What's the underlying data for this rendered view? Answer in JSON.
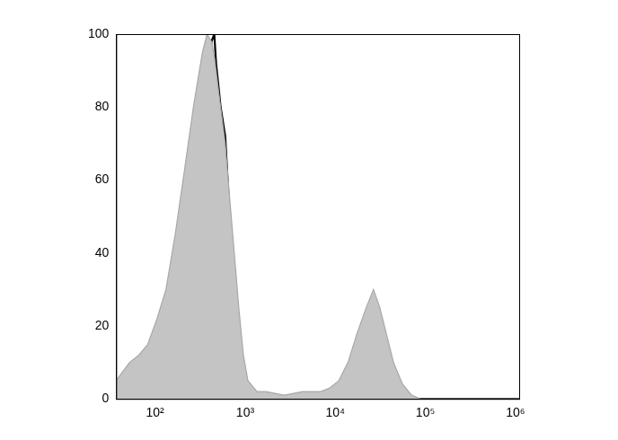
{
  "chart_data": {
    "type": "line",
    "log": "x",
    "grid": false,
    "tick_labels": true,
    "x": [
      37,
      52,
      66,
      83,
      105,
      132,
      167,
      210,
      266,
      335,
      377,
      423,
      454,
      475,
      509,
      534,
      600,
      673,
      757,
      849,
      955,
      1072,
      1352,
      1706,
      2716,
      4325,
      6887,
      8690,
      10965,
      13835,
      17458,
      22029,
      26550,
      31250,
      35080,
      44260,
      55850,
      70470,
      88920,
      177800,
      572700,
      1100000
    ],
    "series": [
      {
        "type": "area",
        "color": "#c4c4c4",
        "values": [
          5,
          10,
          12,
          15,
          22,
          30,
          45,
          62,
          80,
          95,
          100,
          98,
          94,
          90,
          84,
          80,
          70,
          55,
          40,
          25,
          12,
          5,
          2,
          2,
          1,
          2,
          2,
          3,
          5,
          10,
          18,
          25,
          30,
          25,
          20,
          10,
          4,
          1,
          0,
          0,
          0,
          0
        ]
      },
      {
        "type": "line",
        "color": "#000000",
        "values": [
          2,
          6,
          10,
          12,
          16,
          25,
          38,
          52,
          68,
          80,
          88,
          98,
          100,
          92,
          85,
          80,
          72,
          50,
          30,
          15,
          5,
          2,
          1,
          1,
          0,
          0,
          0,
          0,
          0,
          0,
          0,
          0,
          0,
          0,
          0,
          0,
          0,
          0,
          0,
          0,
          0,
          0
        ]
      }
    ],
    "xlim": [
      37,
      1100000
    ],
    "xticks": [
      {
        "value": 100,
        "label": "10²"
      },
      {
        "value": 1000,
        "label": "10³"
      },
      {
        "value": 10000,
        "label": "10⁴"
      },
      {
        "value": 100000,
        "label": "10⁵"
      },
      {
        "value": 1000000,
        "label": "10⁶"
      }
    ],
    "ylim": [
      0,
      100
    ],
    "yticks": [
      0,
      20,
      40,
      60,
      80,
      100
    ]
  }
}
